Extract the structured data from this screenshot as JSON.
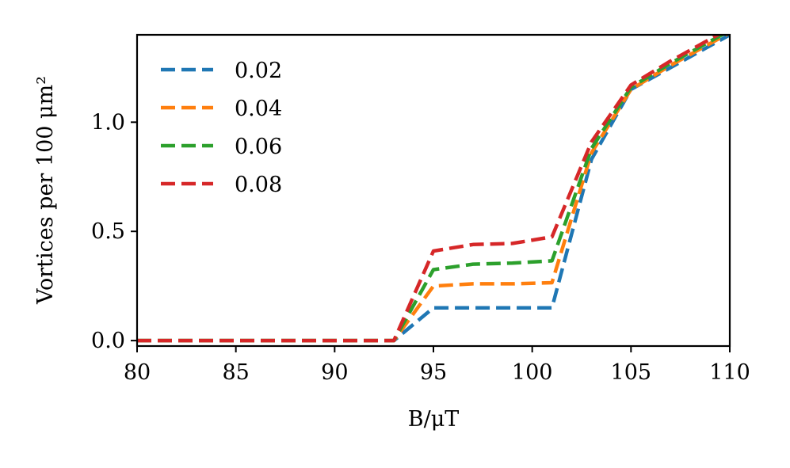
{
  "chart_data": {
    "type": "line",
    "xlabel": "B/μT",
    "ylabel": "Vortices per 100 μm²",
    "xlim": [
      80,
      110
    ],
    "ylim": [
      -0.025,
      1.4
    ],
    "xticks": [
      80,
      85,
      90,
      95,
      100,
      105,
      110
    ],
    "xtick_labels": [
      "80",
      "85",
      "90",
      "95",
      "100",
      "105",
      "110"
    ],
    "yticks": [
      0.0,
      0.5,
      1.0
    ],
    "ytick_labels": [
      "0.0",
      "0.5",
      "1.0"
    ],
    "grid": false,
    "legend_position": "upper-left",
    "line_style": "dashed",
    "series": [
      {
        "name": "0.02",
        "color": "#1f77b4",
        "x": [
          80,
          85,
          90,
          93,
          95,
          97,
          99,
          101,
          103,
          105,
          107,
          109,
          110
        ],
        "y": [
          0.0,
          0.0,
          0.0,
          0.0,
          0.15,
          0.15,
          0.15,
          0.15,
          0.83,
          1.15,
          1.25,
          1.35,
          1.4
        ]
      },
      {
        "name": "0.04",
        "color": "#ff7f0e",
        "x": [
          80,
          85,
          90,
          93,
          95,
          97,
          99,
          101,
          103,
          105,
          107,
          109,
          110
        ],
        "y": [
          0.0,
          0.0,
          0.0,
          0.0,
          0.25,
          0.26,
          0.26,
          0.265,
          0.86,
          1.15,
          1.26,
          1.36,
          1.41
        ]
      },
      {
        "name": "0.06",
        "color": "#2ca02c",
        "x": [
          80,
          85,
          90,
          93,
          95,
          97,
          99,
          101,
          103,
          105,
          107,
          109,
          110
        ],
        "y": [
          0.0,
          0.0,
          0.0,
          0.0,
          0.325,
          0.35,
          0.355,
          0.365,
          0.88,
          1.16,
          1.27,
          1.37,
          1.42
        ]
      },
      {
        "name": "0.08",
        "color": "#d62728",
        "x": [
          80,
          85,
          90,
          93,
          95,
          97,
          99,
          101,
          103,
          105,
          107,
          109,
          110
        ],
        "y": [
          0.0,
          0.0,
          0.0,
          0.0,
          0.41,
          0.44,
          0.445,
          0.475,
          0.91,
          1.17,
          1.28,
          1.38,
          1.43
        ]
      }
    ]
  }
}
